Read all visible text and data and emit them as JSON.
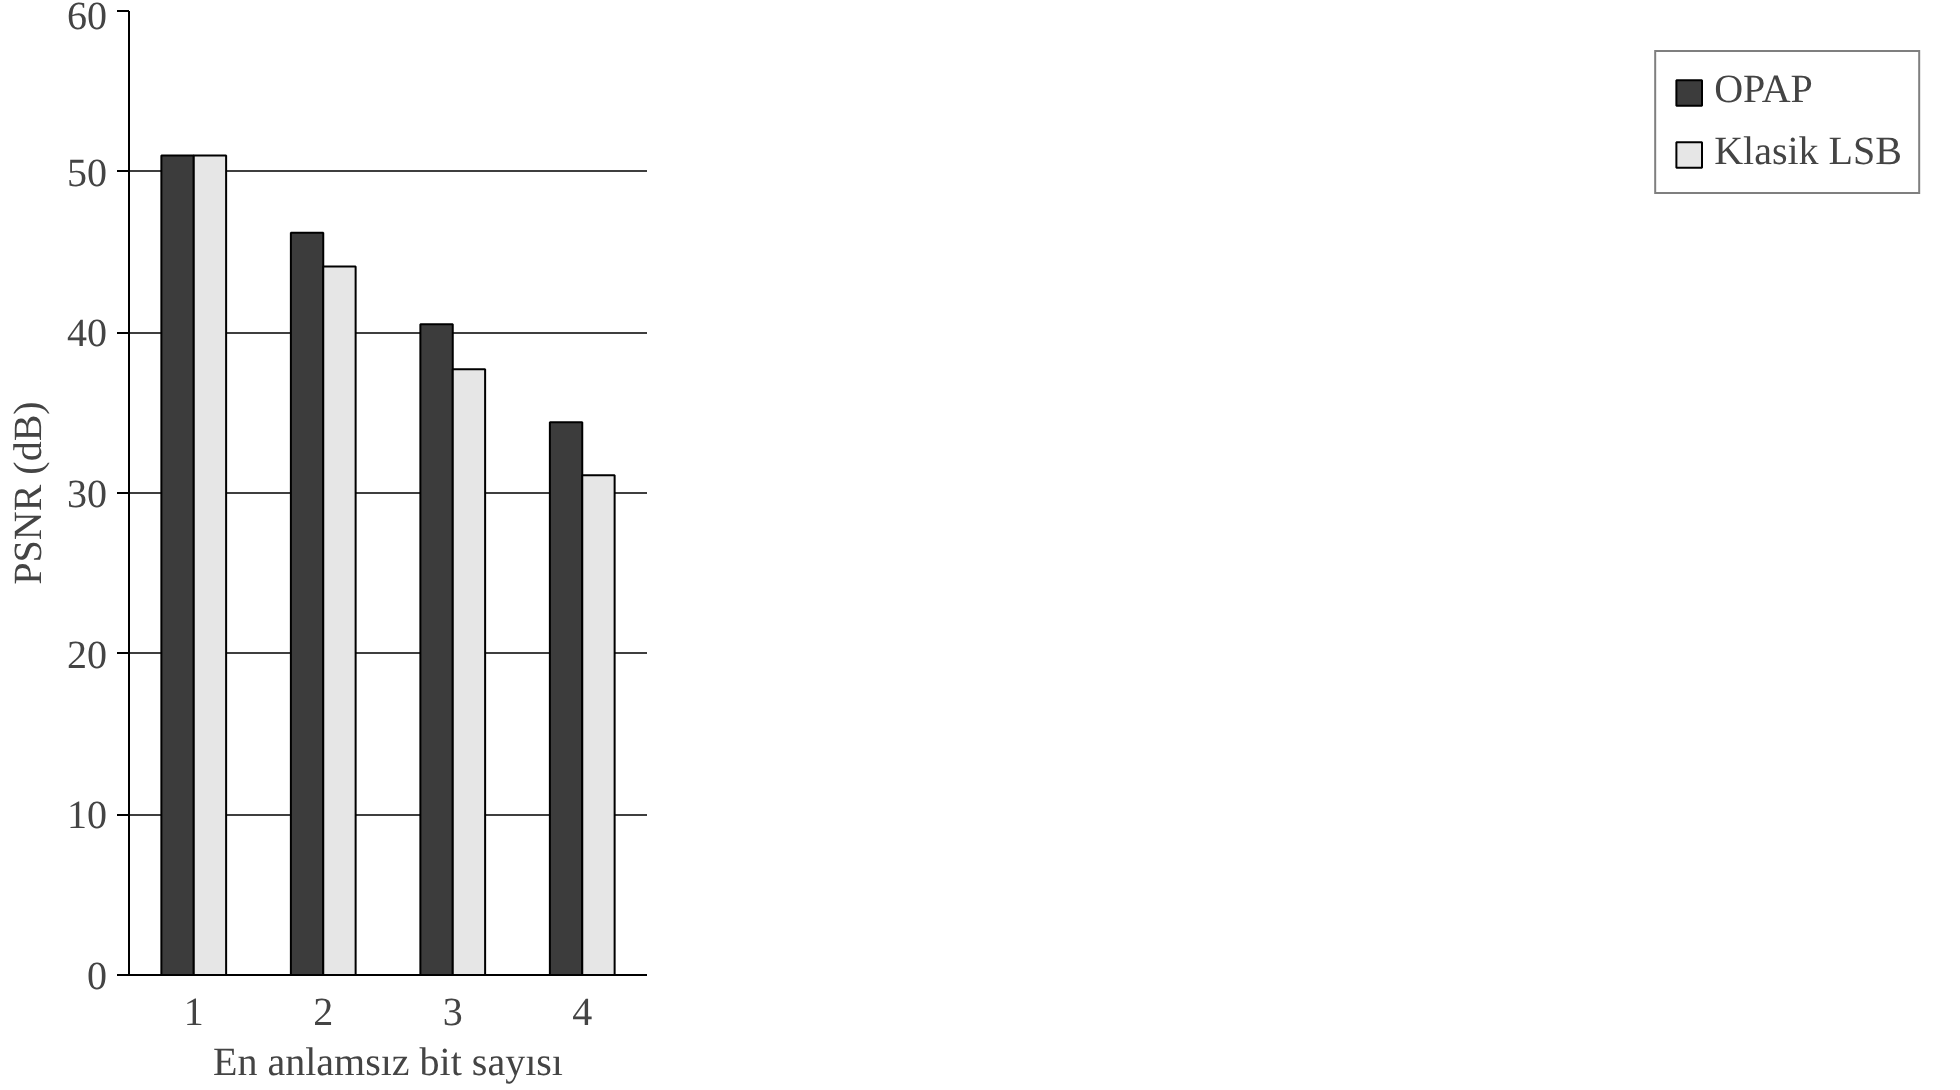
{
  "chart_data": {
    "type": "bar",
    "xlabel": "En anlamsız bit sayısı",
    "ylabel": "PSNR (dB)",
    "categories": [
      "1",
      "2",
      "3",
      "4"
    ],
    "series": [
      {
        "name": "OPAP",
        "color": "#3c3c3c",
        "values": [
          51.0,
          46.2,
          40.5,
          34.4
        ]
      },
      {
        "name": "Klasik LSB",
        "color": "#e6e6e6",
        "values": [
          51.0,
          44.1,
          37.7,
          31.1
        ]
      }
    ],
    "ylim": [
      0,
      60
    ],
    "yticks": [
      0,
      10,
      20,
      30,
      40,
      50,
      60
    ],
    "grid": "y",
    "legend": "right"
  }
}
